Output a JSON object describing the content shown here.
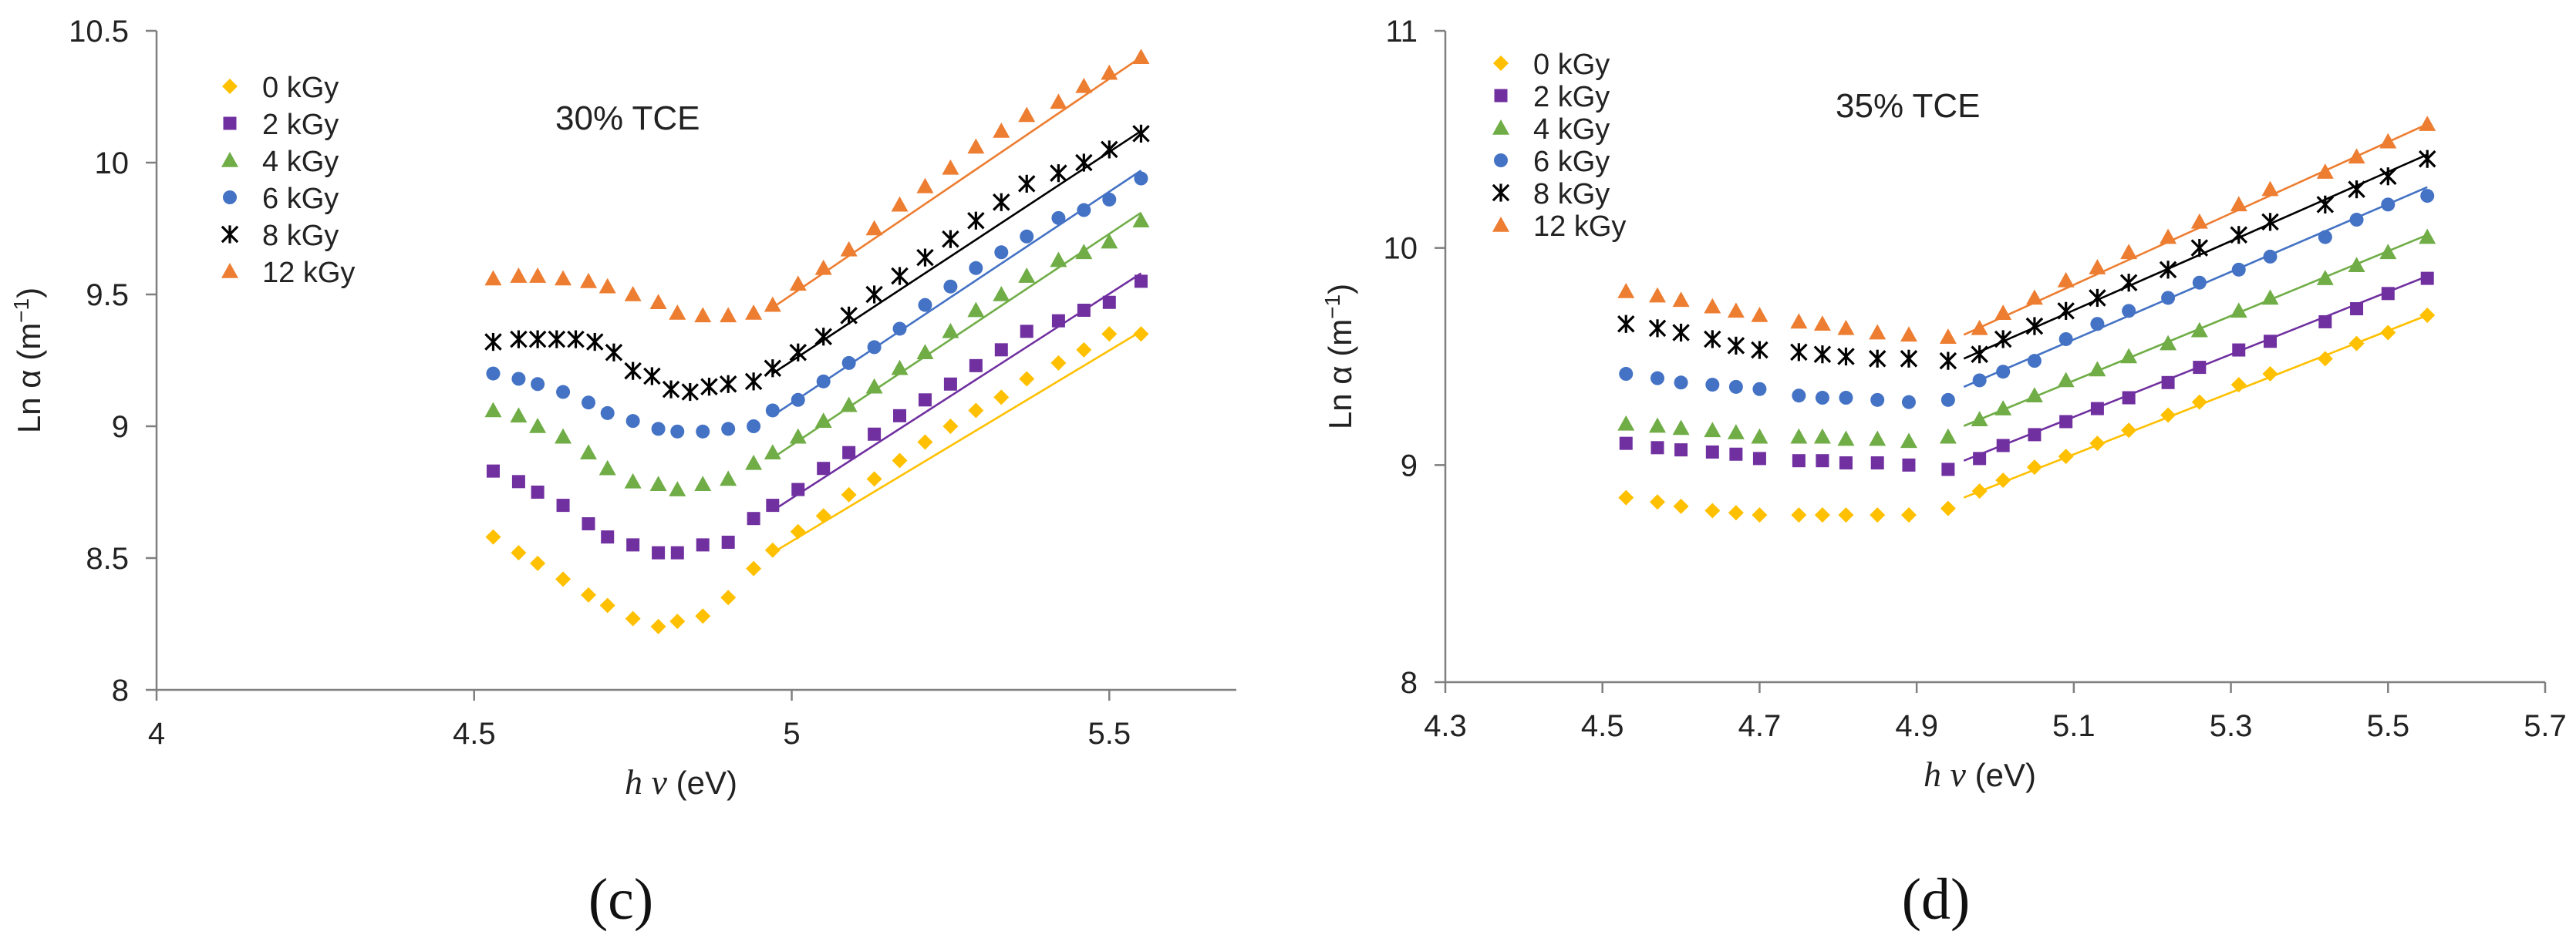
{
  "chart_data": [
    {
      "type": "scatter",
      "annotation": "30% TCE",
      "panel_label": "(c)",
      "xlabel_italic": "h v",
      "xlabel_unit": " (eV)",
      "ylabel": "Ln α (m",
      "ylabel_sup": "−1",
      "ylabel_close": ")",
      "xlim": [
        4,
        5.7
      ],
      "ylim": [
        8,
        10.5
      ],
      "xticks": [
        4,
        4.5,
        5,
        5.5
      ],
      "xtick_labels": [
        "4",
        "4.5",
        "5",
        "5.5"
      ],
      "yticks": [
        8,
        8.5,
        9,
        9.5,
        10,
        10.5
      ],
      "ytick_labels": [
        "8",
        "8.5",
        "9",
        "9.5",
        "10",
        "10.5"
      ],
      "legend_position": "top-left",
      "series": [
        {
          "name": "0 kGy",
          "color": "#FFC000",
          "marker": "diamond",
          "x": [
            4.53,
            4.57,
            4.6,
            4.64,
            4.68,
            4.71,
            4.75,
            4.79,
            4.82,
            4.86,
            4.9,
            4.94,
            4.97,
            5.01,
            5.05,
            5.09,
            5.13,
            5.17,
            5.21,
            5.25,
            5.29,
            5.33,
            5.37,
            5.42,
            5.46,
            5.5,
            5.55
          ],
          "y": [
            8.58,
            8.52,
            8.48,
            8.42,
            8.36,
            8.32,
            8.27,
            8.24,
            8.26,
            8.28,
            8.35,
            8.46,
            8.53,
            8.6,
            8.66,
            8.74,
            8.8,
            8.87,
            8.94,
            9.0,
            9.06,
            9.11,
            9.18,
            9.24,
            9.29,
            9.35,
            9.35
          ],
          "fit": [
            [
              4.97,
              8.52
            ],
            [
              5.55,
              9.36
            ]
          ]
        },
        {
          "name": "2 kGy",
          "color": "#7030A0",
          "marker": "square",
          "x": [
            4.53,
            4.57,
            4.6,
            4.64,
            4.68,
            4.71,
            4.75,
            4.79,
            4.82,
            4.86,
            4.9,
            4.94,
            4.97,
            5.01,
            5.05,
            5.09,
            5.13,
            5.17,
            5.21,
            5.25,
            5.29,
            5.33,
            5.37,
            5.42,
            5.46,
            5.5,
            5.55
          ],
          "y": [
            8.83,
            8.79,
            8.75,
            8.7,
            8.63,
            8.58,
            8.55,
            8.52,
            8.52,
            8.55,
            8.56,
            8.65,
            8.7,
            8.76,
            8.84,
            8.9,
            8.97,
            9.04,
            9.1,
            9.16,
            9.23,
            9.29,
            9.36,
            9.4,
            9.44,
            9.47,
            9.55
          ],
          "fit": [
            [
              4.97,
              8.68
            ],
            [
              5.55,
              9.58
            ]
          ]
        },
        {
          "name": "4 kGy",
          "color": "#70AD47",
          "marker": "triangle",
          "x": [
            4.53,
            4.57,
            4.6,
            4.64,
            4.68,
            4.71,
            4.75,
            4.79,
            4.82,
            4.86,
            4.9,
            4.94,
            4.97,
            5.01,
            5.05,
            5.09,
            5.13,
            5.17,
            5.21,
            5.25,
            5.29,
            5.33,
            5.37,
            5.42,
            5.46,
            5.5,
            5.55
          ],
          "y": [
            9.06,
            9.04,
            9.0,
            8.96,
            8.9,
            8.84,
            8.79,
            8.78,
            8.76,
            8.78,
            8.8,
            8.86,
            8.9,
            8.96,
            9.02,
            9.08,
            9.15,
            9.22,
            9.28,
            9.36,
            9.44,
            9.5,
            9.57,
            9.63,
            9.66,
            9.7,
            9.78
          ],
          "fit": [
            [
              4.97,
              8.88
            ],
            [
              5.55,
              9.81
            ]
          ]
        },
        {
          "name": "6 kGy",
          "color": "#4472C4",
          "marker": "circle",
          "x": [
            4.53,
            4.57,
            4.6,
            4.64,
            4.68,
            4.71,
            4.75,
            4.79,
            4.82,
            4.86,
            4.9,
            4.94,
            4.97,
            5.01,
            5.05,
            5.09,
            5.13,
            5.17,
            5.21,
            5.25,
            5.29,
            5.33,
            5.37,
            5.42,
            5.46,
            5.5,
            5.55
          ],
          "y": [
            9.2,
            9.18,
            9.16,
            9.13,
            9.09,
            9.05,
            9.02,
            8.99,
            8.98,
            8.98,
            8.99,
            9.0,
            9.06,
            9.1,
            9.17,
            9.24,
            9.3,
            9.37,
            9.46,
            9.53,
            9.6,
            9.66,
            9.72,
            9.79,
            9.82,
            9.86,
            9.94
          ],
          "fit": [
            [
              4.97,
              9.04
            ],
            [
              5.55,
              9.97
            ]
          ]
        },
        {
          "name": "8 kGy",
          "color": "#000000",
          "marker": "star",
          "x": [
            4.53,
            4.57,
            4.6,
            4.63,
            4.66,
            4.69,
            4.72,
            4.75,
            4.78,
            4.81,
            4.84,
            4.87,
            4.9,
            4.94,
            4.97,
            5.01,
            5.05,
            5.09,
            5.13,
            5.17,
            5.21,
            5.25,
            5.29,
            5.33,
            5.37,
            5.42,
            5.46,
            5.5,
            5.55
          ],
          "y": [
            9.32,
            9.33,
            9.33,
            9.33,
            9.33,
            9.32,
            9.28,
            9.21,
            9.19,
            9.14,
            9.13,
            9.15,
            9.16,
            9.17,
            9.22,
            9.28,
            9.34,
            9.42,
            9.5,
            9.57,
            9.64,
            9.71,
            9.78,
            9.85,
            9.92,
            9.96,
            10.0,
            10.05,
            10.11
          ],
          "fit": [
            [
              4.97,
              9.2
            ],
            [
              5.55,
              10.12
            ]
          ]
        },
        {
          "name": "12 kGy",
          "color": "#ED7D31",
          "marker": "triangle",
          "x": [
            4.53,
            4.57,
            4.6,
            4.64,
            4.68,
            4.71,
            4.75,
            4.79,
            4.82,
            4.86,
            4.9,
            4.94,
            4.97,
            5.01,
            5.05,
            5.09,
            5.13,
            5.17,
            5.21,
            5.25,
            5.29,
            5.33,
            5.37,
            5.42,
            5.46,
            5.5,
            5.55
          ],
          "y": [
            9.56,
            9.57,
            9.57,
            9.56,
            9.55,
            9.53,
            9.5,
            9.47,
            9.43,
            9.42,
            9.42,
            9.43,
            9.46,
            9.54,
            9.6,
            9.67,
            9.75,
            9.84,
            9.91,
            9.98,
            10.06,
            10.12,
            10.18,
            10.23,
            10.29,
            10.34,
            10.4
          ],
          "fit": [
            [
              4.97,
              9.45
            ],
            [
              5.55,
              10.4
            ]
          ]
        }
      ]
    },
    {
      "type": "scatter",
      "annotation": "35% TCE",
      "panel_label": "(d)",
      "xlabel_italic": "h v",
      "xlabel_unit": " (eV)",
      "ylabel": "Ln α (m",
      "ylabel_sup": "−1",
      "ylabel_close": ")",
      "xlim": [
        4.3,
        5.7
      ],
      "ylim": [
        8,
        11
      ],
      "xticks": [
        4.3,
        4.5,
        4.7,
        4.9,
        5.1,
        5.3,
        5.5,
        5.7
      ],
      "xtick_labels": [
        "4.3",
        "4.5",
        "4.7",
        "4.9",
        "5.1",
        "5.3",
        "5.5",
        "5.7"
      ],
      "yticks": [
        8,
        9,
        10,
        11
      ],
      "ytick_labels": [
        "8",
        "9",
        "10",
        "11"
      ],
      "legend_position": "top-left",
      "series": [
        {
          "name": "0 kGy",
          "color": "#FFC000",
          "marker": "diamond",
          "x": [
            4.53,
            4.57,
            4.6,
            4.64,
            4.67,
            4.7,
            4.75,
            4.78,
            4.81,
            4.85,
            4.89,
            4.94,
            4.98,
            5.01,
            5.05,
            5.09,
            5.13,
            5.17,
            5.22,
            5.26,
            5.31,
            5.35,
            5.42,
            5.46,
            5.5,
            5.55
          ],
          "y": [
            8.85,
            8.83,
            8.81,
            8.79,
            8.78,
            8.77,
            8.77,
            8.77,
            8.77,
            8.77,
            8.77,
            8.8,
            8.88,
            8.93,
            8.99,
            9.04,
            9.1,
            9.16,
            9.23,
            9.29,
            9.37,
            9.42,
            9.49,
            9.56,
            9.61,
            9.69
          ],
          "fit": [
            [
              4.96,
              8.85
            ],
            [
              5.55,
              9.69
            ]
          ]
        },
        {
          "name": "2 kGy",
          "color": "#7030A0",
          "marker": "square",
          "x": [
            4.53,
            4.57,
            4.6,
            4.64,
            4.67,
            4.7,
            4.75,
            4.78,
            4.81,
            4.85,
            4.89,
            4.94,
            4.98,
            5.01,
            5.05,
            5.09,
            5.13,
            5.17,
            5.22,
            5.26,
            5.31,
            5.35,
            5.42,
            5.46,
            5.5,
            5.55
          ],
          "y": [
            9.1,
            9.08,
            9.07,
            9.06,
            9.05,
            9.03,
            9.02,
            9.02,
            9.01,
            9.01,
            9.0,
            8.98,
            9.03,
            9.09,
            9.14,
            9.2,
            9.26,
            9.31,
            9.38,
            9.45,
            9.53,
            9.57,
            9.66,
            9.72,
            9.79,
            9.86
          ],
          "fit": [
            [
              4.96,
              9.02
            ],
            [
              5.55,
              9.87
            ]
          ]
        },
        {
          "name": "4 kGy",
          "color": "#70AD47",
          "marker": "triangle",
          "x": [
            4.53,
            4.57,
            4.6,
            4.64,
            4.67,
            4.7,
            4.75,
            4.78,
            4.81,
            4.85,
            4.89,
            4.94,
            4.98,
            5.01,
            5.05,
            5.09,
            5.13,
            5.17,
            5.22,
            5.26,
            5.31,
            5.35,
            5.42,
            5.46,
            5.5,
            5.55
          ],
          "y": [
            9.19,
            9.18,
            9.17,
            9.16,
            9.15,
            9.13,
            9.13,
            9.13,
            9.12,
            9.12,
            9.11,
            9.13,
            9.21,
            9.26,
            9.32,
            9.39,
            9.44,
            9.5,
            9.56,
            9.62,
            9.71,
            9.77,
            9.86,
            9.92,
            9.98,
            10.05
          ],
          "fit": [
            [
              4.96,
              9.18
            ],
            [
              5.55,
              10.06
            ]
          ]
        },
        {
          "name": "6 kGy",
          "color": "#4472C4",
          "marker": "circle",
          "x": [
            4.53,
            4.57,
            4.6,
            4.64,
            4.67,
            4.7,
            4.75,
            4.78,
            4.81,
            4.85,
            4.89,
            4.94,
            4.98,
            5.01,
            5.05,
            5.09,
            5.13,
            5.17,
            5.22,
            5.26,
            5.31,
            5.35,
            5.42,
            5.46,
            5.5,
            5.55
          ],
          "y": [
            9.42,
            9.4,
            9.38,
            9.37,
            9.36,
            9.35,
            9.32,
            9.31,
            9.31,
            9.3,
            9.29,
            9.3,
            9.39,
            9.43,
            9.48,
            9.58,
            9.65,
            9.71,
            9.77,
            9.84,
            9.9,
            9.96,
            10.05,
            10.13,
            10.2,
            10.24
          ],
          "fit": [
            [
              4.96,
              9.36
            ],
            [
              5.55,
              10.28
            ]
          ]
        },
        {
          "name": "8 kGy",
          "color": "#000000",
          "marker": "star",
          "x": [
            4.53,
            4.57,
            4.6,
            4.64,
            4.67,
            4.7,
            4.75,
            4.78,
            4.81,
            4.85,
            4.89,
            4.94,
            4.98,
            5.01,
            5.05,
            5.09,
            5.13,
            5.17,
            5.22,
            5.26,
            5.31,
            5.35,
            5.42,
            5.46,
            5.5,
            5.55
          ],
          "y": [
            9.65,
            9.63,
            9.61,
            9.58,
            9.55,
            9.53,
            9.52,
            9.51,
            9.5,
            9.49,
            9.49,
            9.48,
            9.51,
            9.58,
            9.64,
            9.71,
            9.77,
            9.84,
            9.9,
            10.0,
            10.06,
            10.12,
            10.2,
            10.27,
            10.33,
            10.41
          ],
          "fit": [
            [
              4.96,
              9.49
            ],
            [
              5.55,
              10.43
            ]
          ]
        },
        {
          "name": "12 kGy",
          "color": "#ED7D31",
          "marker": "triangle",
          "x": [
            4.53,
            4.57,
            4.6,
            4.64,
            4.67,
            4.7,
            4.75,
            4.78,
            4.81,
            4.85,
            4.89,
            4.94,
            4.98,
            5.01,
            5.05,
            5.09,
            5.13,
            5.17,
            5.22,
            5.26,
            5.31,
            5.35,
            5.42,
            5.46,
            5.5,
            5.55
          ],
          "y": [
            9.8,
            9.78,
            9.76,
            9.73,
            9.71,
            9.69,
            9.66,
            9.65,
            9.63,
            9.61,
            9.6,
            9.59,
            9.63,
            9.7,
            9.77,
            9.85,
            9.91,
            9.98,
            10.05,
            10.12,
            10.2,
            10.27,
            10.35,
            10.42,
            10.49,
            10.57
          ],
          "fit": [
            [
              4.96,
              9.6
            ],
            [
              5.55,
              10.57
            ]
          ]
        }
      ]
    }
  ]
}
